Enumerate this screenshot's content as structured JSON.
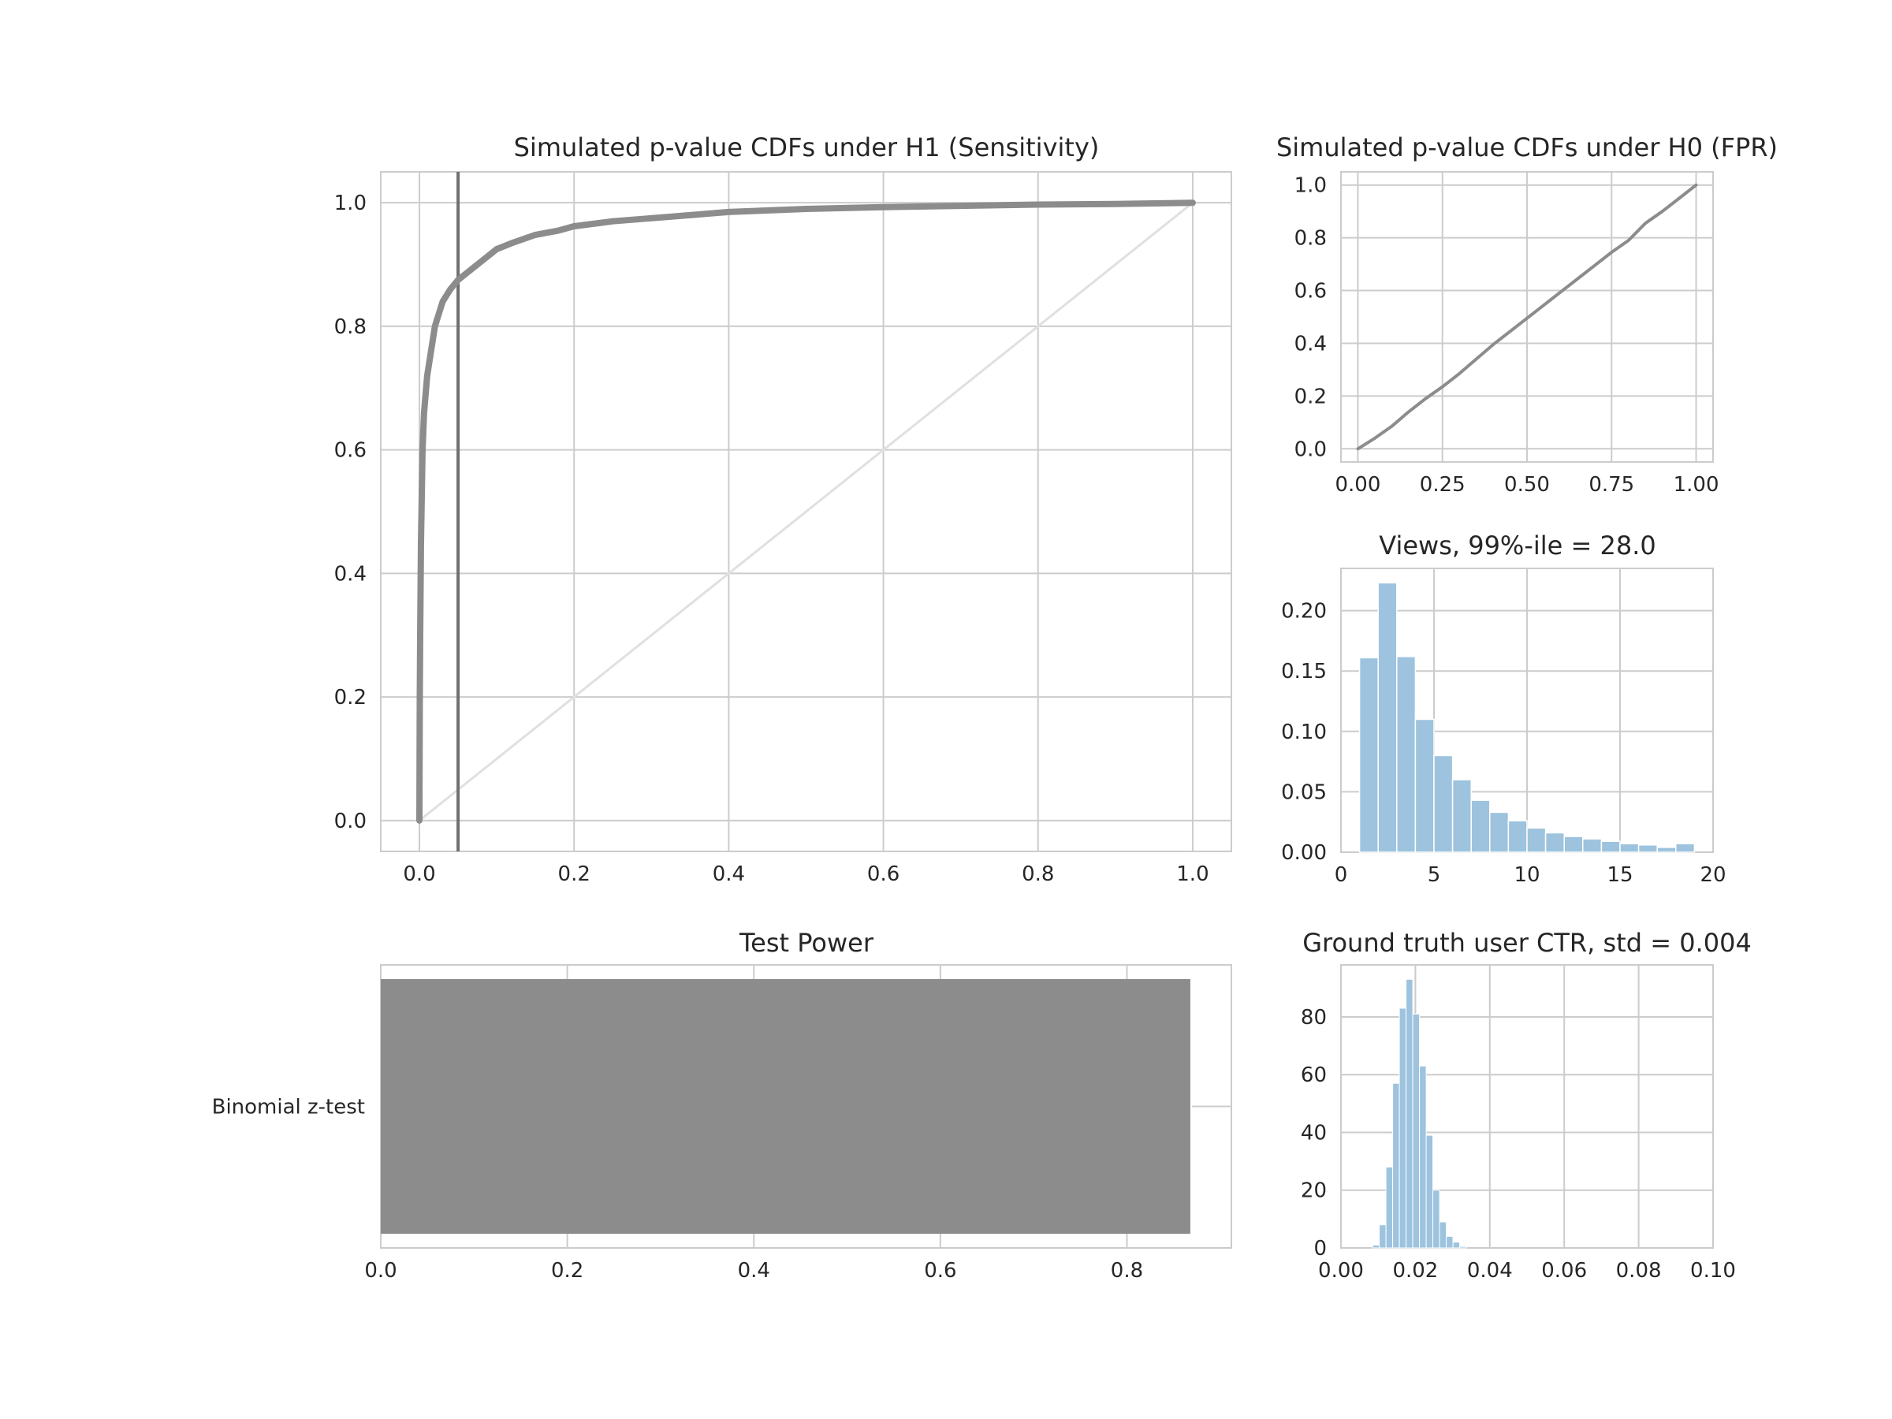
{
  "chart_data": [
    {
      "id": "sensitivity",
      "type": "line",
      "title": "Simulated p-value CDFs under H1 (Sensitivity)",
      "xlim": [
        -0.05,
        1.05
      ],
      "ylim": [
        -0.05,
        1.05
      ],
      "xticks": [
        0.0,
        0.2,
        0.4,
        0.6,
        0.8,
        1.0
      ],
      "xtick_labels": [
        "0.0",
        "0.2",
        "0.4",
        "0.6",
        "0.8",
        "1.0"
      ],
      "yticks": [
        0.0,
        0.2,
        0.4,
        0.6,
        0.8,
        1.0
      ],
      "ytick_labels": [
        "0.0",
        "0.2",
        "0.4",
        "0.6",
        "0.8",
        "1.0"
      ],
      "grid": true,
      "vline": {
        "x": 0.05,
        "color": "#707070"
      },
      "reference_line": {
        "x": [
          0,
          1
        ],
        "y": [
          0,
          1
        ],
        "color": "#e0e0e0"
      },
      "series": [
        {
          "color": "#8c8c8c",
          "x": [
            0.0,
            0.0005,
            0.001,
            0.002,
            0.004,
            0.006,
            0.01,
            0.015,
            0.02,
            0.03,
            0.04,
            0.05,
            0.06,
            0.08,
            0.1,
            0.12,
            0.15,
            0.18,
            0.2,
            0.25,
            0.3,
            0.35,
            0.4,
            0.5,
            0.6,
            0.7,
            0.8,
            0.9,
            1.0
          ],
          "y": [
            0.0,
            0.2,
            0.3,
            0.45,
            0.6,
            0.66,
            0.72,
            0.76,
            0.8,
            0.84,
            0.86,
            0.875,
            0.885,
            0.905,
            0.925,
            0.935,
            0.948,
            0.955,
            0.962,
            0.97,
            0.975,
            0.98,
            0.985,
            0.99,
            0.993,
            0.995,
            0.997,
            0.998,
            1.0
          ]
        }
      ]
    },
    {
      "id": "fpr",
      "type": "line",
      "title": "Simulated p-value CDFs under H0 (FPR)",
      "xlim": [
        -0.05,
        1.05
      ],
      "ylim": [
        -0.05,
        1.05
      ],
      "xticks": [
        0.0,
        0.25,
        0.5,
        0.75,
        1.0
      ],
      "xtick_labels": [
        "0.00",
        "0.25",
        "0.50",
        "0.75",
        "1.00"
      ],
      "yticks": [
        0.0,
        0.2,
        0.4,
        0.6,
        0.8,
        1.0
      ],
      "ytick_labels": [
        "0.0",
        "0.2",
        "0.4",
        "0.6",
        "0.8",
        "1.0"
      ],
      "grid": true,
      "series": [
        {
          "color": "#8c8c8c",
          "x": [
            0.0,
            0.05,
            0.1,
            0.15,
            0.2,
            0.25,
            0.3,
            0.35,
            0.4,
            0.45,
            0.5,
            0.55,
            0.6,
            0.65,
            0.7,
            0.75,
            0.8,
            0.85,
            0.9,
            0.95,
            1.0
          ],
          "y": [
            0.0,
            0.04,
            0.085,
            0.14,
            0.19,
            0.235,
            0.285,
            0.34,
            0.395,
            0.445,
            0.495,
            0.545,
            0.595,
            0.645,
            0.695,
            0.745,
            0.79,
            0.855,
            0.9,
            0.95,
            1.0
          ]
        }
      ]
    },
    {
      "id": "views",
      "type": "bar",
      "title": "Views, 99%-ile = 28.0",
      "xlim": [
        0,
        20
      ],
      "ylim": [
        0,
        0.235
      ],
      "xticks": [
        0,
        5,
        10,
        15,
        20
      ],
      "xtick_labels": [
        "0",
        "5",
        "10",
        "15",
        "20"
      ],
      "yticks": [
        0.0,
        0.05,
        0.1,
        0.15,
        0.2
      ],
      "ytick_labels": [
        "0.00",
        "0.05",
        "0.10",
        "0.15",
        "0.20"
      ],
      "grid": true,
      "bins": {
        "edges": [
          1,
          2,
          3,
          4,
          5,
          6,
          7,
          8,
          9,
          10,
          11,
          12,
          13,
          14,
          15,
          16,
          17,
          18,
          19
        ],
        "values": [
          0.161,
          0.223,
          0.162,
          0.11,
          0.08,
          0.06,
          0.043,
          0.033,
          0.026,
          0.02,
          0.016,
          0.013,
          0.011,
          0.009,
          0.007,
          0.006,
          0.004,
          0.007
        ]
      },
      "color": "#9dc3de"
    },
    {
      "id": "power",
      "type": "bar",
      "orientation": "horizontal",
      "title": "Test Power",
      "categories": [
        "Binomial z-test"
      ],
      "values": [
        0.868
      ],
      "xlim": [
        0,
        0.912
      ],
      "xticks": [
        0.0,
        0.2,
        0.4,
        0.6,
        0.8
      ],
      "xtick_labels": [
        "0.0",
        "0.2",
        "0.4",
        "0.6",
        "0.8"
      ],
      "grid": true,
      "color": "#8c8c8c"
    },
    {
      "id": "ctr",
      "type": "bar",
      "title": "Ground truth user CTR, std = 0.004",
      "xlim": [
        0.0,
        0.1
      ],
      "ylim": [
        0,
        98
      ],
      "xticks": [
        0.0,
        0.02,
        0.04,
        0.06,
        0.08,
        0.1
      ],
      "xtick_labels": [
        "0.00",
        "0.02",
        "0.04",
        "0.06",
        "0.08",
        "0.10"
      ],
      "yticks": [
        0,
        20,
        40,
        60,
        80
      ],
      "ytick_labels": [
        "0",
        "20",
        "40",
        "60",
        "80"
      ],
      "grid": true,
      "bins": {
        "edges": [
          0.0085,
          0.0103,
          0.0121,
          0.0139,
          0.0157,
          0.0175,
          0.0193,
          0.0211,
          0.0229,
          0.0247,
          0.0265,
          0.0283,
          0.0301,
          0.0319,
          0.0337
        ],
        "values": [
          1,
          8,
          28,
          57,
          83,
          93,
          81,
          63,
          39,
          20,
          9,
          4,
          2,
          0.5
        ]
      },
      "color": "#9dc3de"
    }
  ]
}
